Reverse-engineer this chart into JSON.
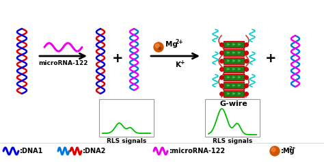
{
  "bg_color": "#ffffff",
  "fig_width": 4.74,
  "fig_height": 2.37,
  "dpi": 100,
  "arrow_color": "#000000",
  "plus_fontsize": 14,
  "label_fontsize": 7.5,
  "legend_fontsize": 7,
  "dna1_color_red": "#dd0000",
  "dna1_color_blue": "#0000dd",
  "dna2_color_blue": "#0077dd",
  "dna2_color_magenta": "#ee00ee",
  "mirna_color": "#ee00ee",
  "mg_ball_color1": "#cc3300",
  "mg_ball_color2": "#4444cc",
  "gwire_color_red": "#cc0000",
  "gwire_color_green": "#227722",
  "rls_signal_color": "#00bb00",
  "box_edgecolor": "#999999",
  "rls1_label": "RLS signals",
  "rls2_label": "RLS signals",
  "gwire_label": "G-wire",
  "mirna_arrow_label": "microRNA-122",
  "legend_dna1": ":DNA1",
  "legend_dna2": ":DNA2",
  "legend_mirna": ":microRNA-122",
  "legend_mg": ":Mg",
  "teal_strand_color": "#00cccc"
}
